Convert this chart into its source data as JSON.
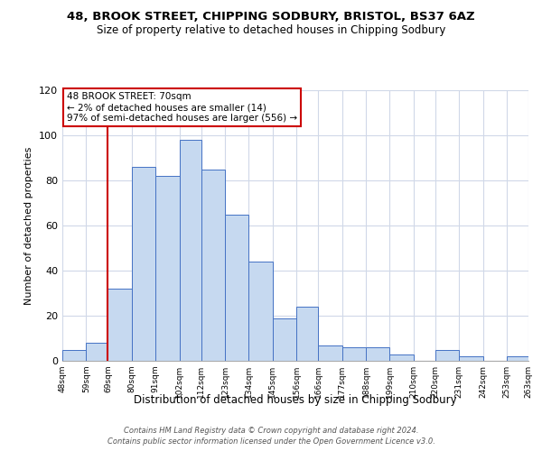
{
  "title": "48, BROOK STREET, CHIPPING SODBURY, BRISTOL, BS37 6AZ",
  "subtitle": "Size of property relative to detached houses in Chipping Sodbury",
  "xlabel": "Distribution of detached houses by size in Chipping Sodbury",
  "ylabel": "Number of detached properties",
  "bin_edges": [
    48,
    59,
    69,
    80,
    91,
    102,
    112,
    123,
    134,
    145,
    156,
    166,
    177,
    188,
    199,
    210,
    220,
    231,
    242,
    253,
    263
  ],
  "bar_heights": [
    5,
    8,
    32,
    86,
    82,
    98,
    85,
    65,
    44,
    19,
    24,
    7,
    6,
    6,
    3,
    0,
    5,
    2,
    0,
    2
  ],
  "bar_color": "#c6d9f0",
  "bar_edge_color": "#4472c4",
  "ylim": [
    0,
    120
  ],
  "yticks": [
    0,
    20,
    40,
    60,
    80,
    100,
    120
  ],
  "property_line_x": 69,
  "property_line_color": "#cc0000",
  "annotation_title": "48 BROOK STREET: 70sqm",
  "annotation_line1": "← 2% of detached houses are smaller (14)",
  "annotation_line2": "97% of semi-detached houses are larger (556) →",
  "annotation_box_color": "#cc0000",
  "footnote1": "Contains HM Land Registry data © Crown copyright and database right 2024.",
  "footnote2": "Contains public sector information licensed under the Open Government Licence v3.0.",
  "tick_labels": [
    "48sqm",
    "59sqm",
    "69sqm",
    "80sqm",
    "91sqm",
    "102sqm",
    "112sqm",
    "123sqm",
    "134sqm",
    "145sqm",
    "156sqm",
    "166sqm",
    "177sqm",
    "188sqm",
    "199sqm",
    "210sqm",
    "220sqm",
    "231sqm",
    "242sqm",
    "253sqm",
    "263sqm"
  ],
  "background_color": "#ffffff",
  "grid_color": "#d0d8e8"
}
